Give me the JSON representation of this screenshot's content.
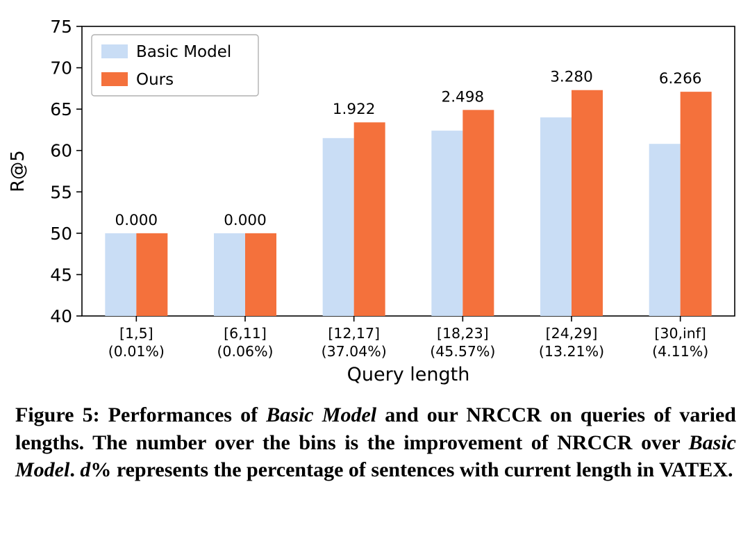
{
  "chart_data": {
    "type": "bar",
    "title": "",
    "xlabel": "Query length",
    "ylabel": "R@5",
    "ylim": [
      40,
      75
    ],
    "yticks": [
      40,
      45,
      50,
      55,
      60,
      65,
      70,
      75
    ],
    "grid": false,
    "legend_position": "upper left",
    "categories": [
      {
        "range": "[1,5]",
        "pct": "(0.01%)"
      },
      {
        "range": "[6,11]",
        "pct": "(0.06%)"
      },
      {
        "range": "[12,17]",
        "pct": "(37.04%)"
      },
      {
        "range": "[18,23]",
        "pct": "(45.57%)"
      },
      {
        "range": "[24,29]",
        "pct": "(13.21%)"
      },
      {
        "range": "[30,inf]",
        "pct": "(4.11%)"
      }
    ],
    "series": [
      {
        "name": "Basic Model",
        "color": "#c9ddf5",
        "values": [
          50.0,
          50.0,
          61.5,
          62.4,
          64.0,
          60.8
        ]
      },
      {
        "name": "Ours",
        "color": "#f4713c",
        "values": [
          50.0,
          50.0,
          63.4,
          64.9,
          67.3,
          67.1
        ]
      }
    ],
    "annotations": [
      "0.000",
      "0.000",
      "1.922",
      "2.498",
      "3.280",
      "6.266"
    ],
    "colors": {
      "axis": "#000000",
      "legend_border": "#b0b0b0",
      "text": "#000000"
    }
  },
  "caption": {
    "label": "figure-5-caption",
    "segments": [
      {
        "text": "Figure 5: Performances of ",
        "italic": false
      },
      {
        "text": "Basic Model",
        "italic": true
      },
      {
        "text": " and our NRCCR on queries of varied lengths. The number over the bins is the improvement of NRCCR over ",
        "italic": false
      },
      {
        "text": "Basic Model",
        "italic": true
      },
      {
        "text": ". ",
        "italic": false
      },
      {
        "text": "d",
        "italic": true
      },
      {
        "text": "% represents the percentage of sentences with current length in VATEX.",
        "italic": false
      }
    ]
  }
}
